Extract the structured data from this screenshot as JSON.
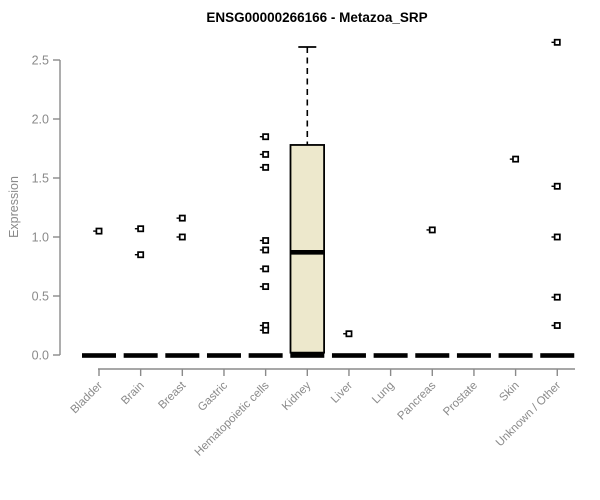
{
  "chart_data": {
    "type": "boxplot",
    "title": "ENSG00000266166 - Metazoa_SRP",
    "ylabel": "Expression",
    "xlabel": "",
    "ylim": [
      0,
      2.5
    ],
    "yticks": [
      0,
      0.5,
      1,
      1.5,
      2,
      2.5
    ],
    "grid": false,
    "legend": null,
    "categories": [
      "Bladder",
      "Brain",
      "Breast",
      "Gastric",
      "Hematopoietic cells",
      "Kidney",
      "Liver",
      "Lung",
      "Pancreas",
      "Prostate",
      "Skin",
      "Unknown / Other"
    ],
    "series": [
      {
        "category": "Bladder",
        "zero_bar": true,
        "box": null,
        "points": [
          1.05
        ]
      },
      {
        "category": "Brain",
        "zero_bar": true,
        "box": null,
        "points": [
          1.07,
          0.85
        ]
      },
      {
        "category": "Breast",
        "zero_bar": true,
        "box": null,
        "points": [
          1.16,
          1.0
        ]
      },
      {
        "category": "Gastric",
        "zero_bar": true,
        "box": null,
        "points": []
      },
      {
        "category": "Hematopoietic cells",
        "zero_bar": true,
        "box": null,
        "points": [
          1.85,
          1.7,
          1.59,
          0.97,
          0.89,
          0.73,
          0.58,
          0.25,
          0.21
        ]
      },
      {
        "category": "Kidney",
        "zero_bar": true,
        "box": {
          "q1": 0.02,
          "median": 0.87,
          "q3": 1.78,
          "whisker_low": 0.02,
          "whisker_high": 2.61
        },
        "points": []
      },
      {
        "category": "Liver",
        "zero_bar": true,
        "box": null,
        "points": [
          0.18
        ]
      },
      {
        "category": "Lung",
        "zero_bar": true,
        "box": null,
        "points": []
      },
      {
        "category": "Pancreas",
        "zero_bar": true,
        "box": null,
        "points": [
          1.06
        ]
      },
      {
        "category": "Prostate",
        "zero_bar": true,
        "box": null,
        "points": []
      },
      {
        "category": "Skin",
        "zero_bar": true,
        "box": null,
        "points": [
          1.66
        ]
      },
      {
        "category": "Unknown / Other",
        "zero_bar": true,
        "box": null,
        "points": [
          2.65,
          1.43,
          1.0,
          0.49,
          0.25
        ]
      }
    ],
    "colors": {
      "background": "#ffffff",
      "box_fill": "#EDE8CC",
      "box_stroke": "#000000",
      "median": "#000000",
      "zero_bar": "#000000",
      "point_stroke": "#000000",
      "point_fill": "#ffffff",
      "axis_line": "#8a8a8a",
      "axis_text": "#8a8a8a",
      "title_color": "#000000"
    }
  }
}
